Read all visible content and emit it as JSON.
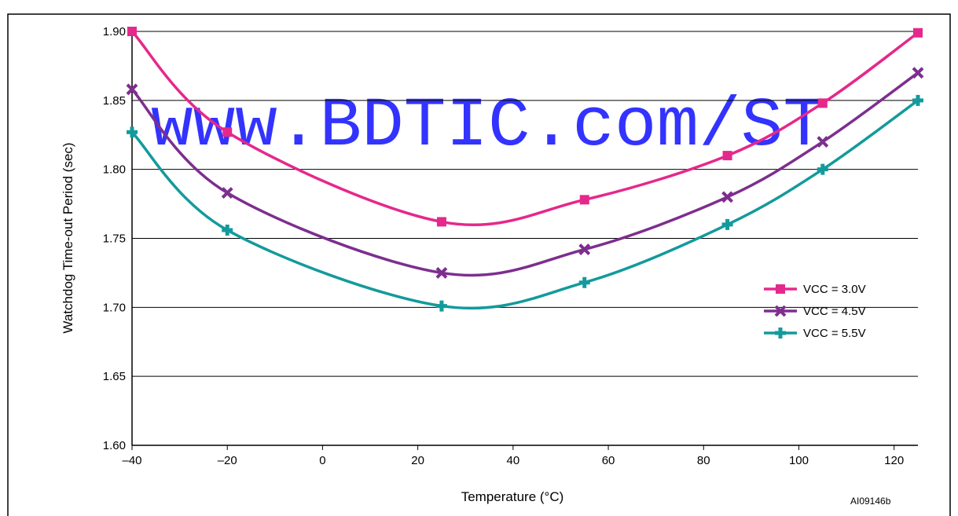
{
  "chart_data": {
    "type": "line",
    "x_label": "Temperature (°C)",
    "y_label": "Watchdog Time-out Period (sec)",
    "annotations": [
      "www.BDTIC.com/ST",
      "AI09146b"
    ],
    "x": [
      -40,
      -20,
      25,
      55,
      85,
      105,
      125
    ],
    "series": [
      {
        "name": "VCC = 3.0V",
        "color": "#e5288c",
        "marker": "square",
        "values": [
          1.9,
          1.827,
          1.762,
          1.778,
          1.81,
          1.848,
          1.899
        ]
      },
      {
        "name": "VCC = 4.5V",
        "color": "#7d2e8e",
        "marker": "x",
        "values": [
          1.858,
          1.783,
          1.725,
          1.742,
          1.78,
          1.82,
          1.87
        ]
      },
      {
        "name": "VCC = 5.5V",
        "color": "#139a9c",
        "marker": "plus",
        "values": [
          1.827,
          1.756,
          1.701,
          1.718,
          1.76,
          1.8,
          1.85
        ]
      }
    ],
    "xlim": [
      -40,
      125
    ],
    "xticks": [
      {
        "value": -40,
        "label": "–40"
      },
      {
        "value": -20,
        "label": "–20"
      },
      0,
      20,
      40,
      60,
      80,
      100,
      120
    ],
    "ylim": [
      1.6,
      1.9
    ],
    "yticks": [
      {
        "value": 1.6,
        "label": "1.60"
      },
      1.65,
      {
        "value": 1.7,
        "label": "1.70"
      },
      1.75,
      {
        "value": 1.8,
        "label": "1.80"
      },
      1.85,
      {
        "value": 1.9,
        "label": "1.90"
      }
    ],
    "grid": true,
    "legend": "right"
  }
}
